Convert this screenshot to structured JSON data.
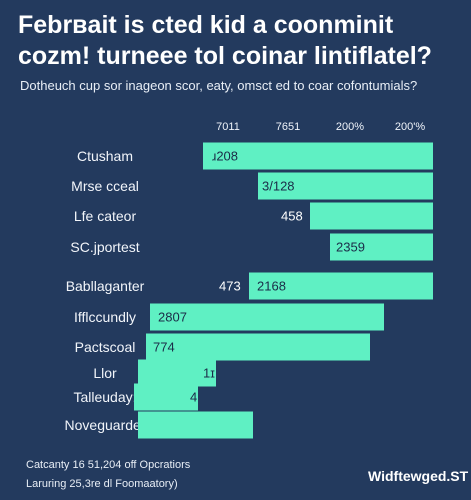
{
  "header": {
    "title": [
      "Febrʙait is cted kid a coonminit",
      "cozm! turneee tol coinar lintiflatel?"
    ],
    "subtitle": "Dotheuch cup sor inageon scor, eaty, omsct ed to coar cofontumials?"
  },
  "columns": [
    "7011",
    "7651",
    "200%",
    "200'%"
  ],
  "rows": [
    {
      "label": "Ctusham",
      "text": "ɹ208"
    },
    {
      "label": "Mrse cceal",
      "text": "3/128"
    },
    {
      "label": "Lfe cateor",
      "outside": "458"
    },
    {
      "label": "SC.jportest",
      "text": "2359"
    },
    {
      "label": "Babllaganter",
      "outside": "473",
      "text": "2168"
    },
    {
      "label": "Ifflccundly",
      "text": "2807"
    },
    {
      "label": "Pactscoal",
      "text": "774"
    },
    {
      "label": "Llor",
      "text": "1ɪ"
    },
    {
      "label": "Talleuday:",
      "text": "4"
    },
    {
      "label": "Noveguarder"
    }
  ],
  "footer": {
    "lines": [
      "Catcanty 16 51,204 off Opcratiors",
      "Laruring 25,3re dl Foomaatory)"
    ],
    "brand": "Widftewged.ST"
  }
}
